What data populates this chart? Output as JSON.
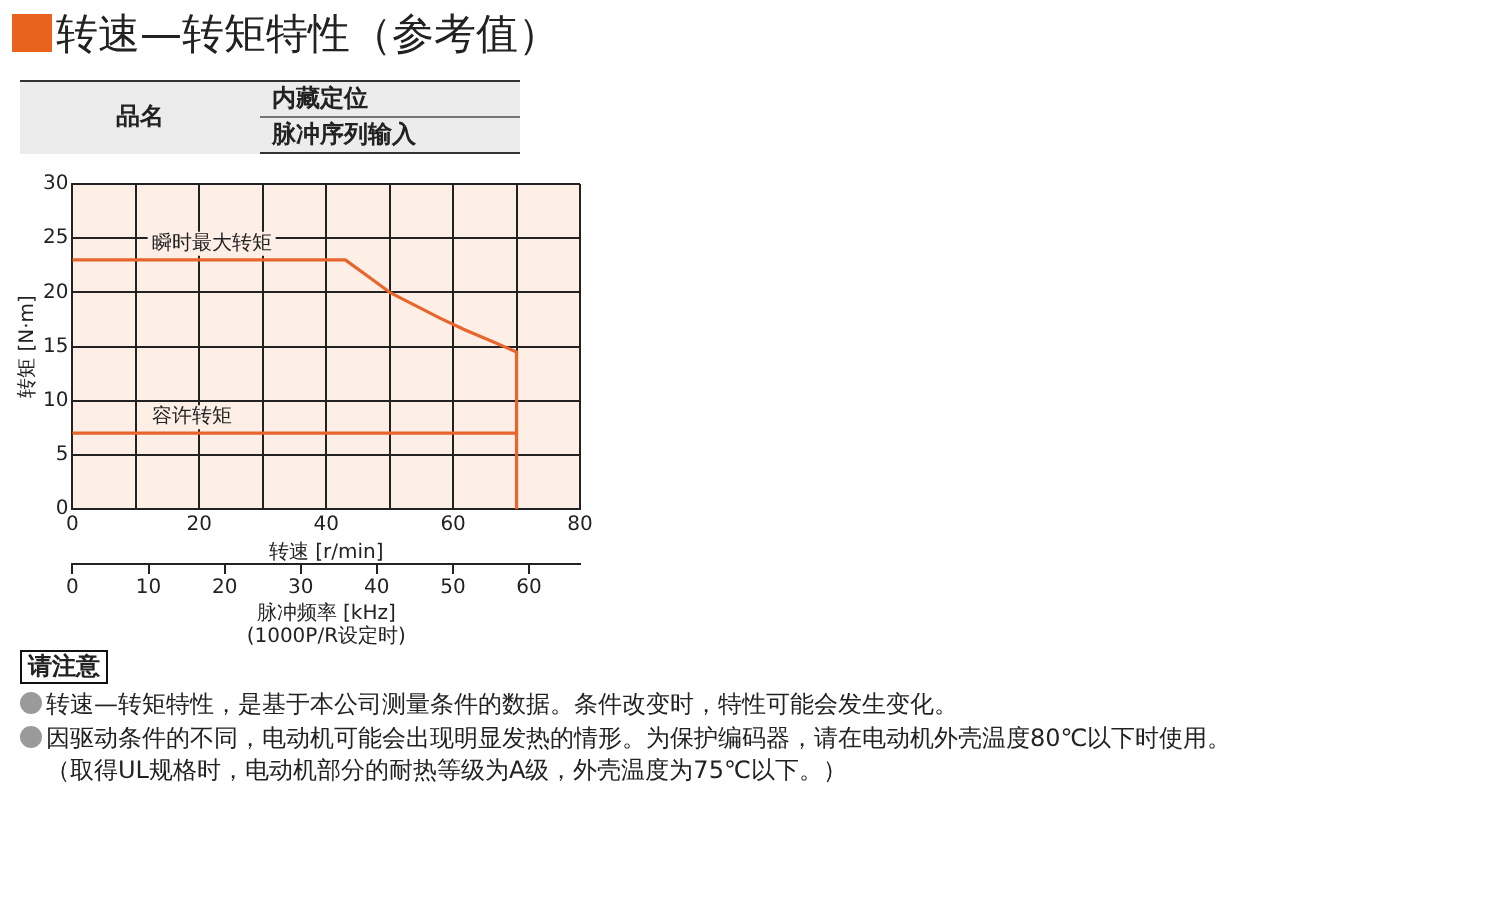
{
  "chart_data": {
    "type": "line",
    "title": "转速—转矩特性（参考值）",
    "xlabel": "转速 [r/min]",
    "ylabel": "转矩 [N·m]",
    "x2label": "脉冲频率 [kHz]\n(1000P/R设定时)",
    "xlim": [
      0,
      80
    ],
    "xticks": [
      0,
      {
        "value": 10,
        "label": null
      },
      20,
      {
        "value": 30,
        "label": null
      },
      40,
      {
        "value": 50,
        "label": null
      },
      60,
      {
        "value": 70,
        "label": null
      },
      80
    ],
    "ylim": [
      0,
      30
    ],
    "yticks": [
      0,
      5,
      10,
      15,
      20,
      25,
      30
    ],
    "x2lim": [
      0,
      66.7
    ],
    "x2ticks": [
      0,
      10,
      20,
      30,
      40,
      50,
      60
    ],
    "series": [
      {
        "name": "瞬时最大转矩",
        "color": "#e8652d",
        "x": [
          0,
          43,
          47,
          50,
          54,
          58,
          62,
          66,
          70,
          70
        ],
        "values": [
          23,
          23,
          21.3,
          20,
          18.8,
          17.6,
          16.5,
          15.5,
          14.5,
          0
        ]
      },
      {
        "name": "容许转矩",
        "color": "#e8652d",
        "x": [
          0,
          70
        ],
        "values": [
          7,
          7
        ]
      }
    ],
    "grid": true,
    "legend": false,
    "marker": "none",
    "line_style": "solid",
    "annotations": [
      "品名",
      "内藏定位",
      "脉冲序列输入",
      "请注意",
      "转速—转矩特性，是基于本公司测量条件的数据。条件改变时，特性可能会发生变化。",
      "因驱动条件的不同，电动机可能会出现明显发热的情形。为保护编码器，请在电动机外壳温度80℃以下时使用。",
      "（取得UL规格时，电动机部分的耐热等级为A级，外壳温度为75℃以下。）"
    ]
  }
}
